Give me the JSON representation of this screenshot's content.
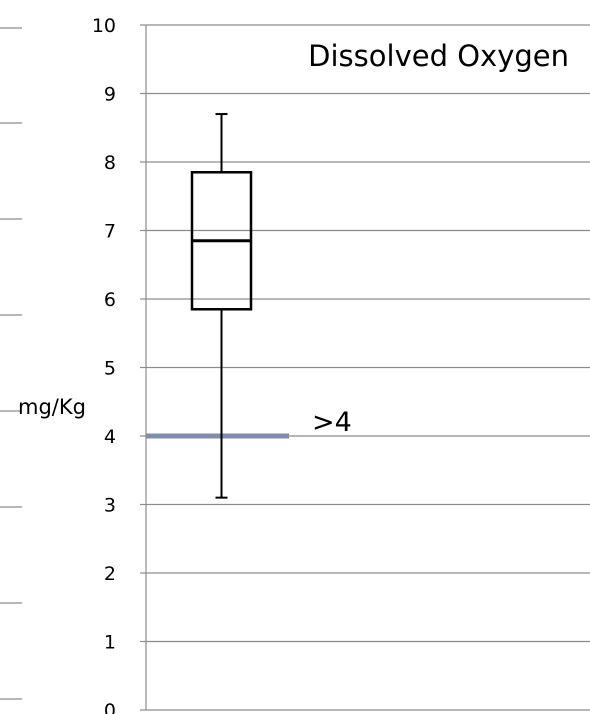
{
  "chart_data": {
    "type": "box",
    "title": "Dissolved Oxygen",
    "xlabel": "",
    "ylabel": "mg/Kg",
    "ylim": [
      0,
      10
    ],
    "yticks": [
      "0",
      "1",
      "2",
      "3",
      "4",
      "5",
      "6",
      "7",
      "8",
      "9",
      "10"
    ],
    "grid": true,
    "box": {
      "min": 3.1,
      "q1": 5.85,
      "median": 6.85,
      "q3": 7.85,
      "max": 8.7
    },
    "threshold": {
      "value": 4,
      "label": ">4",
      "color": "#7f8cae"
    },
    "colors": {
      "grid": "#8c8c8c",
      "box": "#000000"
    }
  }
}
